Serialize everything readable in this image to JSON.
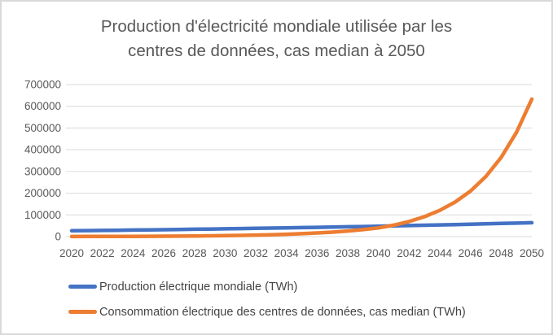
{
  "chart_data": {
    "type": "line",
    "title": "Production d'électricité mondiale utilisée par les centres de données, cas median à 2050",
    "title_lines": [
      "Production d'électricité mondiale utilisée par les",
      "centres de données, cas median à 2050"
    ],
    "x": [
      2020,
      2021,
      2022,
      2023,
      2024,
      2025,
      2026,
      2027,
      2028,
      2029,
      2030,
      2031,
      2032,
      2033,
      2034,
      2035,
      2036,
      2037,
      2038,
      2039,
      2040,
      2041,
      2042,
      2043,
      2044,
      2045,
      2046,
      2047,
      2048,
      2049,
      2050
    ],
    "series": [
      {
        "name": "Production électrique mondiale (TWh)",
        "color": "#4472C4",
        "values": [
          26900,
          27700,
          28500,
          29300,
          30200,
          31100,
          32000,
          32900,
          33900,
          34900,
          35900,
          37000,
          38100,
          39200,
          40300,
          41500,
          42700,
          44000,
          45300,
          46600,
          48000,
          49400,
          50800,
          52300,
          53900,
          55400,
          57100,
          58700,
          60500,
          62200,
          64000
        ]
      },
      {
        "name": "Consommation électrique des centres de données, cas median (TWh)",
        "color": "#ED7D31",
        "values": [
          500,
          620,
          780,
          970,
          1200,
          1500,
          1860,
          2320,
          2890,
          3590,
          4470,
          5570,
          6930,
          8630,
          10750,
          13380,
          16660,
          20740,
          25820,
          32140,
          40020,
          52750,
          69520,
          91630,
          120760,
          159160,
          209780,
          276490,
          364410,
          480290,
          633030
        ]
      }
    ],
    "x_tick_labels": [
      "2020",
      "2022",
      "2024",
      "2026",
      "2028",
      "2030",
      "2032",
      "2034",
      "2036",
      "2038",
      "2040",
      "2042",
      "2044",
      "2046",
      "2048",
      "2050"
    ],
    "y_ticks": [
      0,
      100000,
      200000,
      300000,
      400000,
      500000,
      600000,
      700000
    ],
    "y_tick_labels": [
      "0",
      "100000",
      "200000",
      "300000",
      "400000",
      "500000",
      "600000",
      "700000"
    ],
    "xlim": [
      2020,
      2050
    ],
    "ylim": [
      0,
      700000
    ],
    "xlabel": "",
    "ylabel": "",
    "grid": "horizontal",
    "legend_position": "bottom-left"
  },
  "colors": {
    "background": "#FFFFFF",
    "border": "#D9D9D9",
    "gridline": "#D9D9D9",
    "axis_text": "#595959",
    "title_text": "#595959",
    "legend_text": "#444444",
    "series_production": "#4472C4",
    "series_consommation": "#ED7D31"
  }
}
